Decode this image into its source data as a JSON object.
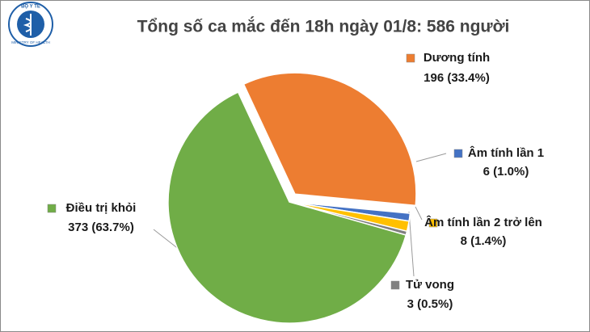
{
  "logo": {
    "top": "BỘ Y TẾ",
    "bottom": "MINISTRY OF HEALTH"
  },
  "chart_data": {
    "type": "pie",
    "title": "Tổng số ca mắc đến 18h ngày 01/8: 586 người",
    "categories": [
      "Dương tính",
      "Âm tính lần 1",
      "Âm tính lần 2 trở lên",
      "Tử vong",
      "Điều trị khỏi"
    ],
    "values": [
      196,
      6,
      8,
      3,
      373
    ],
    "value_labels": [
      "196 (33.4%)",
      "6 (1.0%)",
      "8 (1.4%)",
      "3 (0.5%)",
      "373 (63.7%)"
    ],
    "colors": [
      "#ed7d31",
      "#4472c4",
      "#ffc000",
      "#7f7f7f",
      "#70ad47"
    ]
  }
}
